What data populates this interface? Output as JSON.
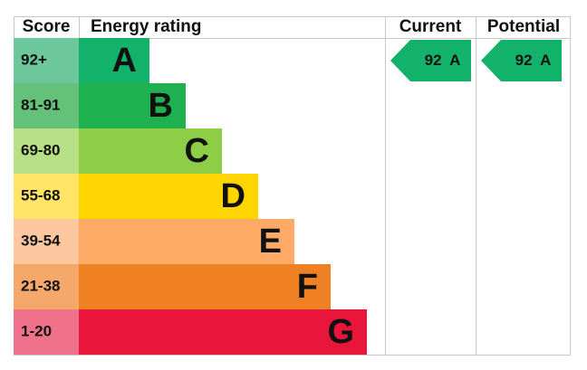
{
  "header": {
    "score": "Score",
    "rating": "Energy rating",
    "current": "Current",
    "potential": "Potential"
  },
  "bands": [
    {
      "score": "92+",
      "letter": "A",
      "color": "#13b26b",
      "score_color": "#6cc79b"
    },
    {
      "score": "81-91",
      "letter": "B",
      "color": "#1fb14f",
      "score_color": "#63c17a"
    },
    {
      "score": "69-80",
      "letter": "C",
      "color": "#8dce46",
      "score_color": "#b6df86"
    },
    {
      "score": "55-68",
      "letter": "D",
      "color": "#ffd500",
      "score_color": "#ffe466"
    },
    {
      "score": "39-54",
      "letter": "E",
      "color": "#fcaa65",
      "score_color": "#fdc8a0"
    },
    {
      "score": "21-38",
      "letter": "F",
      "color": "#ef8023",
      "score_color": "#f5a869"
    },
    {
      "score": "1-20",
      "letter": "G",
      "color": "#e9153b",
      "score_color": "#f0728a"
    }
  ],
  "current": {
    "score": 92,
    "rating": "A",
    "color": "#13b26b"
  },
  "potential": {
    "score": 92,
    "rating": "A",
    "color": "#13b26b"
  }
}
